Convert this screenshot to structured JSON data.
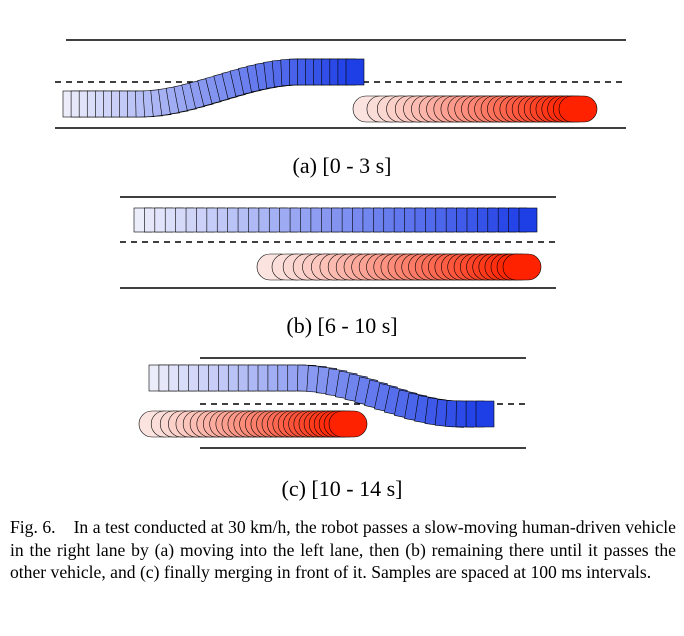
{
  "figure": {
    "panels": [
      {
        "id": "a",
        "label": "(a) [0 - 3 s]"
      },
      {
        "id": "b",
        "label": "(b) [6 - 10 s]"
      },
      {
        "id": "c",
        "label": "(c) [10 - 14 s]"
      }
    ],
    "colors": {
      "robot_start": "#ecedfb",
      "robot_end": "#1f3fe6",
      "human_start": "#fbe4e0",
      "human_end": "#ff2200",
      "road": "#000000"
    }
  },
  "caption": {
    "figure_number": "Fig. 6.",
    "text": "In a test conducted at 30 km/h, the robot passes a slow-moving human-driven vehicle in the right lane by (a) moving into the left lane, then (b) remaining there until it passes the other vehicle, and (c) finally merging in front of it. Samples are spaced at 100 ms intervals."
  }
}
